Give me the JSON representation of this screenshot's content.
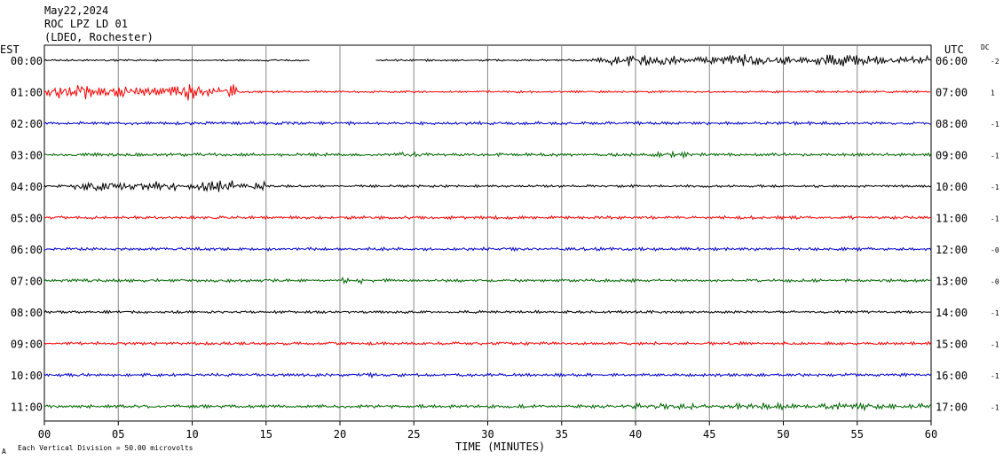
{
  "header": {
    "date": "May22,2024",
    "station": "ROC LPZ LD 01",
    "network": "(LDEO, Rochester)"
  },
  "chart_data": {
    "type": "line",
    "title": "May22,2024",
    "xlabel": "TIME (MINUTES)",
    "left_axis_label": "EST",
    "right_axis_label": "UTC",
    "dc_label": "DC",
    "xlim": [
      0,
      60
    ],
    "x_ticks": [
      "00",
      "05",
      "10",
      "15",
      "20",
      "25",
      "30",
      "35",
      "40",
      "45",
      "50",
      "55",
      "60"
    ],
    "grid": "vertical lines every 5 minutes",
    "scale_note": "Each Vertical Division =   50.00 microvolts",
    "corner_mark": "A",
    "trace_colors": [
      "#000000",
      "#ff0000",
      "#0000cc",
      "#006600"
    ],
    "rows": [
      {
        "est": "00:00",
        "utc": "06:00",
        "dc": "-2",
        "color": "#000000",
        "base_amp": 0.9,
        "gaps": [
          [
            18.0,
            22.4
          ]
        ],
        "bursts": [
          {
            "start": 37,
            "end": 60,
            "amp": 6
          }
        ]
      },
      {
        "est": "01:00",
        "utc": "07:00",
        "dc": "1",
        "color": "#ff0000",
        "base_amp": 1.1,
        "gaps": [],
        "bursts": [
          {
            "start": 0,
            "end": 13,
            "amp": 8
          }
        ]
      },
      {
        "est": "02:00",
        "utc": "08:00",
        "dc": "-1",
        "color": "#0000cc",
        "base_amp": 1.5,
        "gaps": [],
        "bursts": []
      },
      {
        "est": "03:00",
        "utc": "09:00",
        "dc": "-1",
        "color": "#006600",
        "base_amp": 1.5,
        "gaps": [],
        "bursts": [
          {
            "start": 24,
            "end": 26,
            "amp": 3
          },
          {
            "start": 41,
            "end": 44,
            "amp": 3
          }
        ]
      },
      {
        "est": "04:00",
        "utc": "10:00",
        "dc": "-1",
        "color": "#000000",
        "base_amp": 1.2,
        "gaps": [],
        "bursts": [
          {
            "start": 2,
            "end": 15,
            "amp": 6
          }
        ]
      },
      {
        "est": "05:00",
        "utc": "11:00",
        "dc": "-1",
        "color": "#ff0000",
        "base_amp": 1.5,
        "gaps": [],
        "bursts": []
      },
      {
        "est": "06:00",
        "utc": "12:00",
        "dc": "-0",
        "color": "#0000cc",
        "base_amp": 1.5,
        "gaps": [],
        "bursts": []
      },
      {
        "est": "07:00",
        "utc": "13:00",
        "dc": "-0",
        "color": "#006600",
        "base_amp": 1.5,
        "gaps": [],
        "bursts": [
          {
            "start": 20,
            "end": 22,
            "amp": 3
          }
        ]
      },
      {
        "est": "08:00",
        "utc": "14:00",
        "dc": "-1",
        "color": "#000000",
        "base_amp": 1.3,
        "gaps": [],
        "bursts": []
      },
      {
        "est": "09:00",
        "utc": "15:00",
        "dc": "-1",
        "color": "#ff0000",
        "base_amp": 1.5,
        "gaps": [],
        "bursts": []
      },
      {
        "est": "10:00",
        "utc": "16:00",
        "dc": "-1",
        "color": "#0000cc",
        "base_amp": 1.5,
        "gaps": [],
        "bursts": [
          {
            "start": 20.5,
            "end": 22.5,
            "amp": 2.5
          }
        ]
      },
      {
        "est": "11:00",
        "utc": "17:00",
        "dc": "-1",
        "color": "#006600",
        "base_amp": 1.6,
        "gaps": [],
        "bursts": [
          {
            "start": 39,
            "end": 60,
            "amp": 3.5
          }
        ]
      }
    ]
  }
}
